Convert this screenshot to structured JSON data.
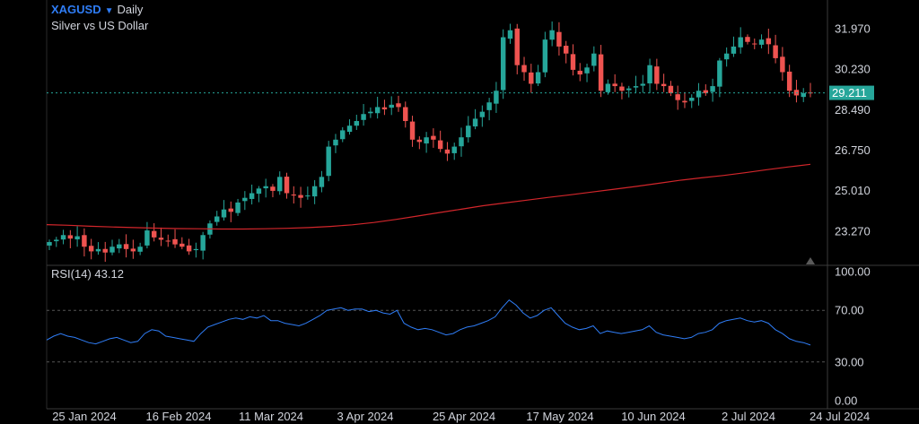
{
  "header": {
    "symbol": "XAGUSD",
    "timeframe": "Daily",
    "subtitle": "Silver vs US Dollar",
    "caret_icon": "caret-down-icon"
  },
  "colors": {
    "up": "#26a69a",
    "down": "#ef5350",
    "ma": "#d2262b",
    "rsi": "#2f7df6",
    "grid": "#3a3a3a",
    "price_line": "#26a69a",
    "price_box": "#26a69a"
  },
  "chart_data": [
    {
      "type": "candlestick",
      "title": "XAGUSD · Daily",
      "subtitle": "Silver vs US Dollar",
      "y_ticks": [
        31.97,
        30.23,
        28.49,
        26.75,
        25.01,
        23.27
      ],
      "y_tick_labels": [
        "31.970",
        "30.230",
        "28.490",
        "26.750",
        "25.010",
        "23.270"
      ],
      "ylim": [
        21.8,
        33.2
      ],
      "current_price": 29.211,
      "current_price_label": "29.211",
      "x_labels": [
        "25 Jan 2024",
        "16 Feb 2024",
        "11 Mar 2024",
        "3 Apr 2024",
        "25 Apr 2024",
        "17 May 2024",
        "10 Jun 2024",
        "2 Jul 2024",
        "24 Jul 2024"
      ],
      "closes": [
        22.8,
        22.9,
        23.1,
        22.95,
        23.05,
        22.6,
        22.4,
        22.5,
        22.35,
        22.6,
        22.7,
        22.5,
        22.4,
        22.6,
        23.3,
        23.0,
        22.9,
        22.85,
        22.7,
        22.6,
        22.4,
        22.5,
        23.1,
        23.6,
        23.9,
        24.2,
        24.1,
        24.5,
        24.7,
        24.9,
        25.1,
        25.2,
        25.0,
        25.6,
        24.9,
        24.8,
        24.7,
        24.8,
        25.2,
        25.6,
        26.9,
        27.2,
        27.6,
        27.8,
        28.0,
        28.3,
        28.4,
        28.6,
        28.5,
        28.7,
        28.6,
        28.0,
        27.2,
        27.1,
        27.3,
        27.2,
        26.8,
        26.6,
        26.9,
        27.3,
        27.8,
        28.1,
        28.4,
        28.8,
        29.3,
        31.6,
        31.9,
        30.4,
        30.1,
        29.6,
        30.1,
        31.5,
        31.9,
        31.2,
        30.9,
        30.2,
        30.0,
        30.3,
        30.9,
        29.3,
        29.6,
        29.5,
        29.3,
        29.4,
        29.5,
        29.6,
        30.4,
        29.6,
        29.5,
        29.2,
        28.9,
        28.8,
        29.0,
        29.3,
        29.2,
        29.5,
        30.6,
        30.9,
        31.2,
        31.6,
        31.4,
        31.3,
        31.5,
        31.3,
        30.7,
        30.1,
        29.3,
        29.1,
        29.2,
        29.211
      ],
      "ma_values": [
        23.55,
        23.52,
        23.48,
        23.45,
        23.42,
        23.4,
        23.38,
        23.37,
        23.36,
        23.36,
        23.37,
        23.39,
        23.42,
        23.47,
        23.54,
        23.64,
        23.77,
        23.92,
        24.07,
        24.21,
        24.36,
        24.48,
        24.6,
        24.72,
        24.83,
        24.95,
        25.07,
        25.19,
        25.32,
        25.45,
        25.56,
        25.66,
        25.78,
        25.91,
        26.03,
        26.14
      ],
      "rsi": {
        "label": "RSI(14)",
        "value": 43.12,
        "value_label": "43.12",
        "y_ticks": [
          100,
          70,
          30,
          0
        ],
        "y_tick_labels": [
          "100.00",
          "70.00",
          "30.00",
          "0.00"
        ],
        "levels": [
          70,
          30
        ],
        "ylim": [
          0,
          100
        ],
        "values": [
          47,
          50,
          52,
          50,
          49,
          47,
          45,
          44,
          46,
          48,
          49,
          47,
          45,
          46,
          52,
          55,
          54,
          50,
          49,
          48,
          47,
          46,
          52,
          57,
          59,
          61,
          63,
          64,
          63,
          65,
          64,
          66,
          62,
          62,
          60,
          59,
          58,
          60,
          63,
          66,
          70,
          71,
          72,
          70,
          71,
          71,
          69,
          70,
          68,
          67,
          70,
          60,
          57,
          55,
          56,
          55,
          53,
          51,
          52,
          55,
          57,
          58,
          60,
          62,
          65,
          72,
          78,
          74,
          68,
          64,
          66,
          70,
          72,
          66,
          60,
          57,
          55,
          56,
          58,
          52,
          54,
          53,
          52,
          53,
          54,
          55,
          58,
          53,
          51,
          50,
          49,
          48,
          49,
          52,
          53,
          55,
          60,
          62,
          63,
          64,
          62,
          61,
          62,
          60,
          55,
          52,
          48,
          46,
          45,
          43.12
        ]
      }
    }
  ]
}
